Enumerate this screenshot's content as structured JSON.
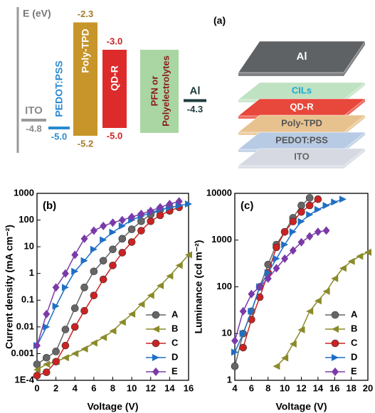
{
  "energy_diagram": {
    "axis_label": "E (eV)",
    "pfn_lines": [
      "PFN or",
      "Polyelectrolytes"
    ],
    "materials": [
      {
        "name": "ITO",
        "kind": "line",
        "color": "#9a9a9a",
        "text_color": "#8a8a8a",
        "level": -4.8
      },
      {
        "name": "PEDOT:PSS",
        "kind": "line",
        "color": "#2a8ad0",
        "text_color": "#2a8ad0",
        "level": {
          "value": -5,
          "label": "-5.0"
        }
      },
      {
        "name": "Poly-TPD",
        "kind": "box",
        "color": "#c8952a",
        "text_color": "#a27a2a",
        "top": -2.3,
        "bottom": -5.2
      },
      {
        "name": "QD-R",
        "kind": "box",
        "color": "#dd2b2b",
        "text_color": "#cc2222",
        "top": {
          "value": -3,
          "label": "-3.0"
        },
        "bottom": {
          "value": -5,
          "label": "-5.0"
        }
      },
      {
        "name": "Al",
        "kind": "line",
        "color": "#1f3d3d",
        "text_color": "#1f3d3d",
        "level": -4.3
      }
    ]
  },
  "device_stack": {
    "panel": "(a)",
    "layers": [
      {
        "name": "Al",
        "color": "#5f6265",
        "text_color": "#ffffff"
      },
      {
        "name": "CILs",
        "color": "#bfe2c2",
        "text_color": "#16a9d8"
      },
      {
        "name": "QD-R",
        "color": "#e8473b",
        "text_color": "#ffffff"
      },
      {
        "name": "Poly-TPD",
        "color": "#e8c28e",
        "text_color": "#555555"
      },
      {
        "name": "PEDOT:PSS",
        "color": "#b8cbe4",
        "text_color": "#555555"
      },
      {
        "name": "ITO",
        "color": "#d6d9e2",
        "text_color": "#666666"
      }
    ]
  },
  "chart_data": [
    {
      "type": "line",
      "panel": "(b)",
      "x_label": "Voltage (V)",
      "y_label": "Current density (mA cm⁻²)",
      "log_y": true,
      "legend": "lower right",
      "xlim": [
        0,
        16
      ],
      "xticks": [
        0,
        2,
        4,
        6,
        8,
        10,
        12,
        14,
        16
      ],
      "ylim": [
        0.0001,
        1000
      ],
      "yticks": [
        {
          "value": 0.0001,
          "label": "1E-4"
        },
        0.001,
        0.01,
        0.1,
        1,
        10,
        100,
        1000
      ],
      "series": [
        {
          "name": "A",
          "color": "#666666",
          "marker": "circle",
          "x": [
            0,
            1,
            2,
            3,
            4,
            5,
            6,
            7,
            8,
            9,
            10,
            11,
            12,
            13,
            14
          ],
          "values": [
            0.0004,
            0.0007,
            0.0012,
            0.008,
            0.05,
            0.3,
            1.2,
            3,
            8,
            20,
            45,
            90,
            160,
            240,
            300
          ]
        },
        {
          "name": "B",
          "color": "#8a8a2a",
          "marker": "triangle-left",
          "x": [
            0,
            1,
            2,
            3,
            4,
            5,
            6,
            7,
            8,
            9,
            10,
            11,
            12,
            13,
            14,
            15,
            16
          ],
          "values": [
            0.00025,
            0.0004,
            0.0005,
            0.0007,
            0.001,
            0.0015,
            0.0025,
            0.004,
            0.007,
            0.015,
            0.03,
            0.07,
            0.15,
            0.35,
            0.8,
            2,
            5
          ]
        },
        {
          "name": "C",
          "color": "#cc2222",
          "marker": "circle",
          "x": [
            0,
            1,
            2,
            3,
            4,
            5,
            6,
            7,
            8,
            9,
            10,
            11,
            12,
            13,
            14,
            15
          ],
          "values": [
            0.00015,
            0.0002,
            0.0005,
            0.002,
            0.01,
            0.04,
            0.15,
            0.6,
            2,
            6,
            15,
            40,
            90,
            150,
            220,
            300
          ]
        },
        {
          "name": "D",
          "color": "#1f6fc4",
          "marker": "triangle-right",
          "x": [
            0,
            1,
            2,
            3,
            4,
            5,
            6,
            7,
            8,
            9,
            10,
            11,
            12,
            13,
            14,
            15,
            16
          ],
          "values": [
            0.002,
            0.01,
            0.06,
            0.3,
            1.2,
            3,
            8,
            18,
            35,
            60,
            100,
            140,
            190,
            240,
            290,
            350,
            400
          ]
        },
        {
          "name": "E",
          "color": "#7b3aa8",
          "marker": "diamond",
          "x": [
            0,
            1,
            2,
            3,
            4,
            5,
            6,
            7,
            8,
            9,
            10,
            11,
            12,
            13,
            14,
            15
          ],
          "values": [
            0.002,
            0.03,
            0.3,
            1,
            5,
            20,
            40,
            60,
            80,
            100,
            130,
            170,
            220,
            300,
            400,
            500
          ]
        }
      ]
    },
    {
      "type": "line",
      "panel": "(c)",
      "x_label": "Voltage (V)",
      "y_label": "Luminance (cd m⁻²)",
      "log_y": true,
      "legend": "lower right",
      "xlim": [
        4,
        20
      ],
      "xticks": [
        4,
        6,
        8,
        10,
        12,
        14,
        16,
        18,
        20
      ],
      "ylim": [
        1,
        10000
      ],
      "yticks": [
        1,
        10,
        100,
        1000,
        10000
      ],
      "series": [
        {
          "name": "A",
          "color": "#666666",
          "marker": "circle",
          "x": [
            4,
            5,
            6,
            7,
            8,
            9,
            10,
            11,
            12,
            13
          ],
          "values": [
            2,
            10,
            30,
            100,
            300,
            800,
            1500,
            3000,
            5500,
            8000
          ]
        },
        {
          "name": "B",
          "color": "#8a8a2a",
          "marker": "triangle-left",
          "x": [
            9,
            10,
            11,
            12,
            13,
            14,
            15,
            16,
            17,
            18,
            19,
            20
          ],
          "values": [
            2,
            3,
            6,
            12,
            30,
            50,
            80,
            150,
            250,
            350,
            450,
            550
          ]
        },
        {
          "name": "C",
          "color": "#cc2222",
          "marker": "circle",
          "x": [
            5,
            6,
            7,
            8,
            9,
            10,
            11,
            12,
            13,
            14
          ],
          "values": [
            5,
            20,
            60,
            200,
            700,
            1500,
            2500,
            4000,
            5500,
            7500
          ]
        },
        {
          "name": "D",
          "color": "#1f6fc4",
          "marker": "triangle-right",
          "x": [
            4,
            5,
            6,
            7,
            8,
            9,
            10,
            11,
            12,
            13,
            14,
            15,
            16,
            17
          ],
          "values": [
            4,
            10,
            30,
            100,
            200,
            400,
            800,
            1500,
            2500,
            3500,
            4500,
            5500,
            6500,
            7500
          ]
        },
        {
          "name": "E",
          "color": "#7b3aa8",
          "marker": "diamond",
          "x": [
            4,
            5,
            6,
            7,
            8,
            9,
            10,
            11,
            12,
            13,
            14,
            15
          ],
          "values": [
            7,
            30,
            70,
            100,
            150,
            250,
            400,
            600,
            900,
            1200,
            1500,
            1600
          ]
        }
      ]
    }
  ]
}
